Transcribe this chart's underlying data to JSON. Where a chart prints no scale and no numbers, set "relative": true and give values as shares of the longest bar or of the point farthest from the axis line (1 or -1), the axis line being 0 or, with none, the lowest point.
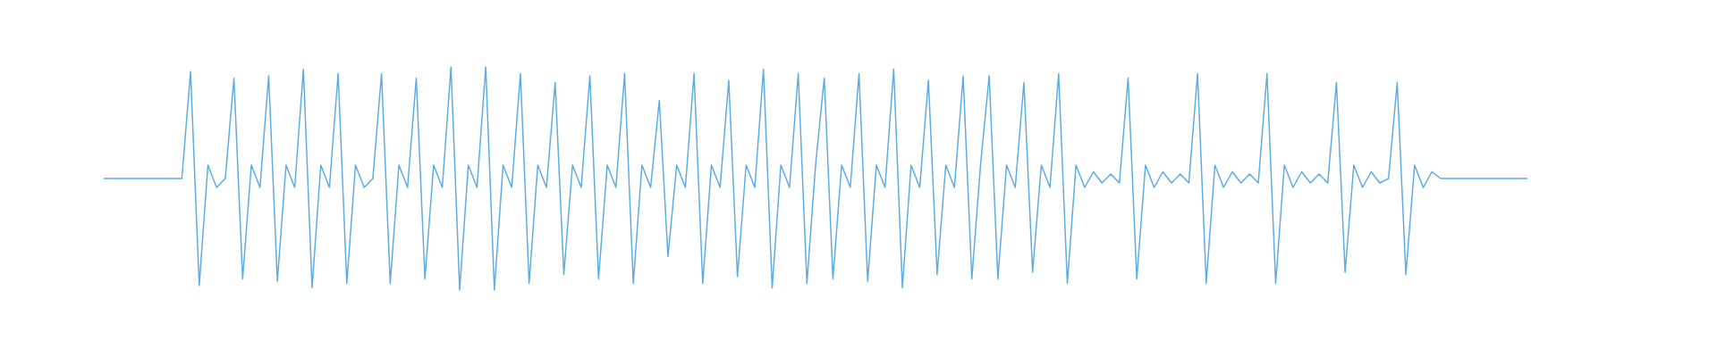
{
  "chart_data": {
    "type": "line",
    "relative": true,
    "marker": "none",
    "categories": [
      null,
      null,
      null,
      null,
      null,
      null,
      null,
      null,
      null,
      null,
      null,
      null,
      null,
      null,
      null,
      null,
      null,
      null,
      null,
      null,
      null,
      null,
      null,
      null,
      null,
      null,
      null,
      null,
      null,
      null,
      null,
      null,
      null,
      null,
      null,
      null,
      null,
      null,
      null,
      null,
      null,
      null,
      null,
      null,
      null,
      null,
      null,
      null,
      null,
      null,
      null,
      null,
      null,
      null,
      null,
      null,
      null,
      null,
      null,
      null,
      null,
      null,
      null,
      null,
      null,
      null,
      null,
      null,
      null,
      null,
      null,
      null,
      null,
      null,
      null,
      null,
      null,
      null,
      null,
      null,
      null,
      null,
      null,
      null,
      null,
      null,
      null,
      null,
      null,
      null,
      null,
      null,
      null,
      null,
      null,
      null,
      null,
      null,
      null,
      null,
      null,
      null,
      null,
      null,
      null,
      null,
      null,
      null,
      null,
      null,
      null,
      null,
      null,
      null,
      null,
      null,
      null,
      null,
      null,
      null,
      null,
      null,
      null,
      null,
      null,
      null,
      null,
      null,
      null,
      null,
      null,
      null,
      null,
      null,
      null,
      null,
      null,
      null,
      null,
      null,
      null,
      null,
      null,
      null,
      null,
      null,
      null,
      null,
      null,
      null,
      null,
      null,
      null,
      null,
      null,
      null,
      null,
      null,
      null,
      null,
      null,
      null,
      null,
      null,
      null
    ],
    "series": [
      {
        "color": "#5dade2",
        "values": [
          0.5,
          0.5,
          0.5,
          0.5,
          0.5,
          0.5,
          0.5,
          0.5,
          0.5,
          0.5,
          0.98,
          0.02,
          0.56,
          0.46,
          0.5,
          0.95,
          0.05,
          0.56,
          0.46,
          0.96,
          0.04,
          0.56,
          0.46,
          0.99,
          0.01,
          0.56,
          0.46,
          0.97,
          0.03,
          0.56,
          0.46,
          0.5,
          0.97,
          0.03,
          0.56,
          0.46,
          0.95,
          0.05,
          0.56,
          0.46,
          1,
          0,
          0.56,
          0.46,
          1,
          0,
          0.56,
          0.46,
          0.97,
          0.03,
          0.56,
          0.46,
          0.93,
          0.07,
          0.56,
          0.46,
          0.96,
          0.05,
          0.56,
          0.46,
          0.97,
          0.03,
          0.56,
          0.46,
          0.85,
          0.15,
          0.56,
          0.46,
          0.97,
          0.03,
          0.56,
          0.46,
          0.94,
          0.06,
          0.56,
          0.46,
          0.99,
          0.01,
          0.56,
          0.46,
          0.97,
          0.03,
          0.56,
          0.95,
          0.05,
          0.56,
          0.46,
          0.97,
          0.04,
          0.56,
          0.46,
          0.99,
          0.01,
          0.56,
          0.46,
          0.94,
          0.07,
          0.56,
          0.46,
          0.96,
          0.05,
          0.56,
          0.96,
          0.05,
          0.56,
          0.46,
          0.93,
          0.08,
          0.56,
          0.46,
          0.97,
          0.03,
          0.56,
          0.46,
          0.53,
          0.48,
          0.52,
          0.48,
          0.95,
          0.05,
          0.56,
          0.46,
          0.53,
          0.48,
          0.52,
          0.48,
          0.97,
          0.03,
          0.56,
          0.46,
          0.53,
          0.48,
          0.52,
          0.48,
          0.97,
          0.03,
          0.56,
          0.46,
          0.53,
          0.48,
          0.52,
          0.48,
          0.93,
          0.08,
          0.56,
          0.46,
          0.53,
          0.48,
          0.5,
          0.93,
          0.07,
          0.56,
          0.46,
          0.53,
          0.5,
          0.5,
          0.5,
          0.5,
          0.5,
          0.5,
          0.5,
          0.5,
          0.5,
          0.5,
          0.5
        ]
      }
    ]
  }
}
